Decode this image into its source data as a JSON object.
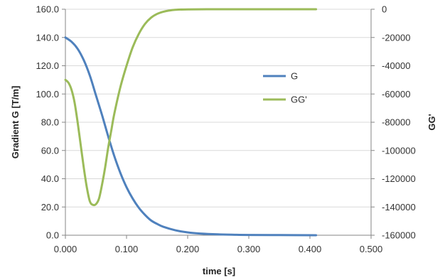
{
  "chart_data": {
    "type": "line",
    "title": "",
    "xlabel": "time [s]",
    "ylabel": "Gradient G [T/m]",
    "y2label": "GG'",
    "xlim": [
      0,
      0.5
    ],
    "ylim": [
      0,
      160
    ],
    "y2lim": [
      -160000,
      0
    ],
    "xticks": [
      0,
      0.1,
      0.2,
      0.3,
      0.4,
      0.5
    ],
    "xtick_labels": [
      "0.000",
      "0.100",
      "0.200",
      "0.300",
      "0.400",
      "0.500"
    ],
    "yticks": [
      0,
      20,
      40,
      60,
      80,
      100,
      120,
      140,
      160
    ],
    "ytick_labels": [
      "0.0",
      "20.0",
      "40.0",
      "60.0",
      "80.0",
      "100.0",
      "120.0",
      "140.0",
      "160.0"
    ],
    "y2ticks": [
      -160000,
      -140000,
      -120000,
      -100000,
      -80000,
      -60000,
      -40000,
      -20000,
      0
    ],
    "y2tick_labels": [
      "-160000",
      "-140000",
      "-120000",
      "-100000",
      "-80000",
      "-60000",
      "-40000",
      "-20000",
      "0"
    ],
    "grid": true,
    "legend_position": "right",
    "series": [
      {
        "name": "G",
        "axis": "left",
        "color": "#4f81bd",
        "x": [
          0,
          0.01,
          0.02,
          0.03,
          0.04,
          0.05,
          0.06,
          0.07,
          0.08,
          0.09,
          0.1,
          0.11,
          0.12,
          0.13,
          0.14,
          0.15,
          0.16,
          0.18,
          0.2,
          0.22,
          0.25,
          0.28,
          0.3,
          0.35,
          0.41
        ],
        "y": [
          140,
          137,
          132,
          124,
          113,
          99,
          85,
          70,
          56,
          44,
          34,
          26,
          19.5,
          14.5,
          10.5,
          8,
          6,
          3.5,
          2,
          1.2,
          0.6,
          0.3,
          0.2,
          0.1,
          0
        ]
      },
      {
        "name": "GG'",
        "axis": "right",
        "color": "#9bbb59",
        "x": [
          0,
          0.005,
          0.01,
          0.015,
          0.02,
          0.025,
          0.03,
          0.035,
          0.04,
          0.045,
          0.05,
          0.055,
          0.06,
          0.065,
          0.07,
          0.075,
          0.08,
          0.09,
          0.1,
          0.11,
          0.12,
          0.13,
          0.14,
          0.15,
          0.16,
          0.17,
          0.18,
          0.2,
          0.25,
          0.3,
          0.41
        ],
        "y": [
          -50000,
          -52000,
          -57000,
          -66000,
          -80000,
          -96000,
          -112000,
          -126000,
          -136000,
          -138500,
          -138000,
          -134000,
          -124000,
          -112000,
          -98000,
          -86000,
          -74000,
          -55000,
          -40000,
          -27000,
          -17500,
          -10500,
          -6000,
          -3300,
          -1800,
          -900,
          -400,
          -100,
          0,
          0,
          0
        ]
      }
    ]
  }
}
